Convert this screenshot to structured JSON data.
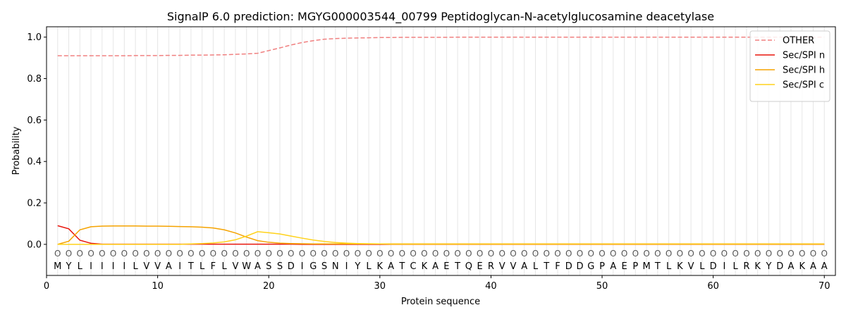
{
  "chart_data": {
    "type": "line",
    "title": "SignalP 6.0 prediction: MGYG000003544_00799 Peptidoglycan-N-acetylglucosamine deacetylase",
    "xlabel": "Protein sequence",
    "ylabel": "Probability",
    "xlim": [
      0,
      71
    ],
    "ylim": [
      -0.15,
      1.05
    ],
    "xticks": [
      0,
      10,
      20,
      30,
      40,
      50,
      60,
      70
    ],
    "yticks": [
      0.0,
      0.2,
      0.4,
      0.6,
      0.8,
      1.0
    ],
    "xtick_labels": [
      "0",
      "10",
      "20",
      "30",
      "40",
      "50",
      "60",
      "70"
    ],
    "ytick_labels": [
      "0.0",
      "0.2",
      "0.4",
      "0.6",
      "0.8",
      "1.0"
    ],
    "grid": "vertical lines at each residue",
    "legend_position": "top-right",
    "sequence": [
      "M",
      "Y",
      "L",
      "I",
      "I",
      "I",
      "I",
      "L",
      "V",
      "V",
      "A",
      "I",
      "T",
      "L",
      "F",
      "L",
      "V",
      "W",
      "A",
      "S",
      "S",
      "D",
      "I",
      "G",
      "S",
      "N",
      "I",
      "Y",
      "L",
      "K",
      "A",
      "T",
      "C",
      "K",
      "A",
      "E",
      "T",
      "Q",
      "E",
      "R",
      "V",
      "V",
      "A",
      "L",
      "T",
      "F",
      "D",
      "D",
      "G",
      "P",
      "A",
      "E",
      "P",
      "M",
      "T",
      "L",
      "K",
      "V",
      "L",
      "D",
      "I",
      "L",
      "R",
      "K",
      "Y",
      "D",
      "A",
      "K",
      "A",
      "A"
    ],
    "region_marker": "O",
    "region_marker_y": -0.045,
    "x": [
      1,
      2,
      3,
      4,
      5,
      6,
      7,
      8,
      9,
      10,
      11,
      12,
      13,
      14,
      15,
      16,
      17,
      18,
      19,
      20,
      21,
      22,
      23,
      24,
      25,
      26,
      27,
      28,
      29,
      30,
      31,
      32,
      33,
      34,
      35,
      36,
      37,
      38,
      39,
      40,
      41,
      42,
      43,
      44,
      45,
      46,
      47,
      48,
      49,
      50,
      51,
      52,
      53,
      54,
      55,
      56,
      57,
      58,
      59,
      60,
      61,
      62,
      63,
      64,
      65,
      66,
      67,
      68,
      69,
      70
    ],
    "series": [
      {
        "name": "OTHER",
        "color": "#f08080",
        "dash": true,
        "values": [
          0.91,
          0.91,
          0.91,
          0.91,
          0.91,
          0.91,
          0.91,
          0.911,
          0.911,
          0.911,
          0.912,
          0.912,
          0.913,
          0.913,
          0.914,
          0.915,
          0.917,
          0.919,
          0.922,
          0.935,
          0.948,
          0.962,
          0.974,
          0.983,
          0.99,
          0.993,
          0.995,
          0.996,
          0.997,
          0.998,
          0.998,
          0.999,
          0.999,
          0.999,
          0.999,
          0.999,
          1,
          1,
          1,
          1,
          1,
          1,
          1,
          1,
          1,
          1,
          1,
          1,
          1,
          1,
          1,
          1,
          1,
          1,
          1,
          1,
          1,
          1,
          1,
          1,
          1,
          1,
          1,
          1,
          1,
          1,
          1,
          1,
          1,
          1
        ]
      },
      {
        "name": "Sec/SPI n",
        "color": "#e8160c",
        "dash": false,
        "values": [
          0.09,
          0.075,
          0.02,
          0.005,
          0.001,
          0.001,
          0.001,
          0.001,
          0.001,
          0.001,
          0.001,
          0.001,
          0.001,
          0.001,
          0.001,
          0.001,
          0.001,
          0.001,
          0.001,
          0.001,
          0.001,
          0.001,
          0,
          0,
          0,
          0,
          0,
          0,
          0,
          0,
          0,
          0,
          0,
          0,
          0,
          0,
          0,
          0,
          0,
          0,
          0,
          0,
          0,
          0,
          0,
          0,
          0,
          0,
          0,
          0,
          0,
          0,
          0,
          0,
          0,
          0,
          0,
          0,
          0,
          0,
          0,
          0,
          0,
          0,
          0,
          0,
          0,
          0,
          0,
          0
        ]
      },
      {
        "name": "Sec/SPI h",
        "color": "#f5a300",
        "dash": false,
        "values": [
          0.0,
          0.015,
          0.07,
          0.085,
          0.088,
          0.089,
          0.089,
          0.089,
          0.088,
          0.088,
          0.087,
          0.086,
          0.085,
          0.083,
          0.079,
          0.07,
          0.055,
          0.035,
          0.018,
          0.01,
          0.006,
          0.004,
          0.003,
          0.002,
          0.002,
          0.002,
          0.002,
          0.002,
          0.002,
          0.002,
          0.002,
          0.002,
          0.002,
          0.002,
          0.002,
          0.002,
          0.002,
          0.002,
          0.002,
          0.002,
          0.002,
          0.002,
          0.002,
          0.002,
          0.002,
          0.002,
          0.002,
          0.002,
          0.002,
          0.002,
          0.002,
          0.002,
          0.002,
          0.002,
          0.002,
          0.002,
          0.002,
          0.002,
          0.002,
          0.002,
          0.002,
          0.002,
          0.002,
          0.002,
          0.002,
          0.002,
          0.002,
          0.002,
          0.002,
          0.002
        ]
      },
      {
        "name": "Sec/SPI c",
        "color": "#ffd21a",
        "dash": false,
        "values": [
          0.0,
          0.0,
          0.0,
          0.0,
          0.0,
          0.0,
          0.0,
          0.0,
          0.0,
          0.0,
          0.0,
          0.0,
          0.002,
          0.004,
          0.007,
          0.012,
          0.022,
          0.04,
          0.061,
          0.056,
          0.05,
          0.04,
          0.03,
          0.021,
          0.014,
          0.009,
          0.006,
          0.004,
          0.003,
          0.002,
          0.001,
          0.001,
          0.001,
          0.001,
          0.001,
          0.001,
          0.001,
          0.001,
          0.001,
          0.001,
          0.001,
          0.001,
          0.001,
          0.001,
          0.001,
          0.001,
          0.001,
          0.001,
          0.001,
          0.001,
          0.001,
          0.001,
          0.001,
          0.001,
          0.001,
          0.001,
          0.001,
          0.001,
          0.001,
          0.001,
          0.001,
          0.001,
          0.001,
          0.001,
          0.001,
          0.001,
          0.001,
          0.001,
          0.001,
          0.001
        ]
      }
    ]
  }
}
